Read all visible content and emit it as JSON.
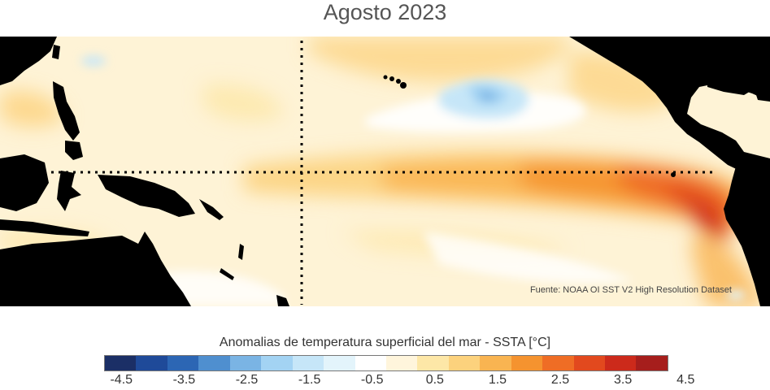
{
  "title": "Agosto 2023",
  "source": "Fuente: NOAA OI SST V2 High Resolution Dataset",
  "colorbar": {
    "title": "Anomalias de temperatura superficial del mar - SSTA  [°C]",
    "ticks": [
      "-4.5",
      "-3.5",
      "-2.5",
      "-1.5",
      "-0.5",
      "0.5",
      "1.5",
      "2.5",
      "3.5",
      "4.5"
    ],
    "colors": [
      "#1b2f66",
      "#1f4a99",
      "#2c66b4",
      "#4f8fcf",
      "#7ab4e4",
      "#a3d3f3",
      "#c6e6f8",
      "#e3f4fb",
      "#ffffff",
      "#fff5dc",
      "#fde7a7",
      "#fcd27d",
      "#f9b451",
      "#f5932f",
      "#ef6d25",
      "#e2491e",
      "#cc2a1b",
      "#a61e1c"
    ]
  },
  "map": {
    "land_color": "#000000",
    "ocean_base": "#fef3d6",
    "reference_lines": [
      "equator",
      "dateline"
    ]
  }
}
